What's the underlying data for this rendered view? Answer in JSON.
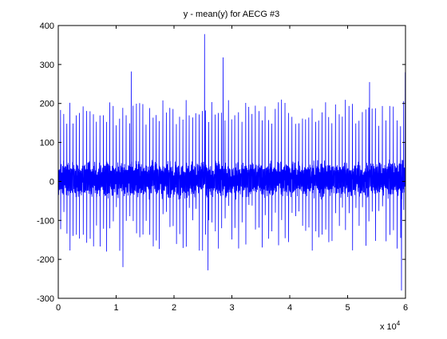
{
  "chart_data": {
    "type": "line",
    "title": "y - mean(y) for AECG #3",
    "xlabel": "",
    "ylabel": "",
    "x_exponent_label": "x 10",
    "x_exponent_power": "4",
    "xlim": [
      0,
      6
    ],
    "ylim": [
      -300,
      400
    ],
    "x_ticks": [
      "0",
      "1",
      "2",
      "3",
      "4",
      "5",
      "6"
    ],
    "y_ticks": [
      "-300",
      "-200",
      "-100",
      "0",
      "100",
      "200",
      "300",
      "400"
    ],
    "grid": false,
    "series": [
      {
        "color": "#0000ff",
        "baseline_band": [
          -35,
          45
        ],
        "peaks": [
          {
            "x": 1.2596,
            "y": 282
          },
          {
            "x": 2.5277,
            "y": 378
          },
          {
            "x": 2.8491,
            "y": 318
          },
          {
            "x": 5.3795,
            "y": 255
          },
          {
            "x": 5.9961,
            "y": 280
          }
        ],
        "troughs": [
          {
            "x": 1.1166,
            "y": -220
          },
          {
            "x": 2.5888,
            "y": -228
          },
          {
            "x": 5.9302,
            "y": -280
          }
        ]
      }
    ]
  }
}
